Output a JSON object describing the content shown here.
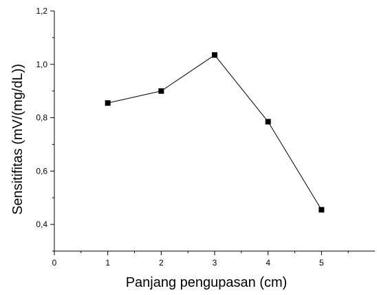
{
  "chart_data": {
    "type": "line",
    "title": "",
    "xlabel": "Panjang pengupasan (cm)",
    "ylabel": "Sensitifitas (mV/(mg/dL))",
    "x": [
      1,
      2,
      3,
      4,
      5
    ],
    "series": [
      {
        "values": [
          0.855,
          0.9,
          1.035,
          0.785,
          0.455
        ],
        "color": "#000000",
        "marker": "square"
      }
    ],
    "xlim": [
      0,
      6
    ],
    "ylim": [
      0.3,
      1.2
    ],
    "x_ticks": [
      0,
      1,
      2,
      3,
      4,
      5
    ],
    "x_tick_labels": [
      "0",
      "1",
      "2",
      "3",
      "4",
      "5"
    ],
    "y_ticks": [
      0.4,
      0.6,
      0.8,
      1.0,
      1.2
    ],
    "y_tick_labels": [
      "0,4",
      "0,6",
      "0,8",
      "1,0",
      "1,2"
    ],
    "grid": false,
    "legend": "none"
  }
}
